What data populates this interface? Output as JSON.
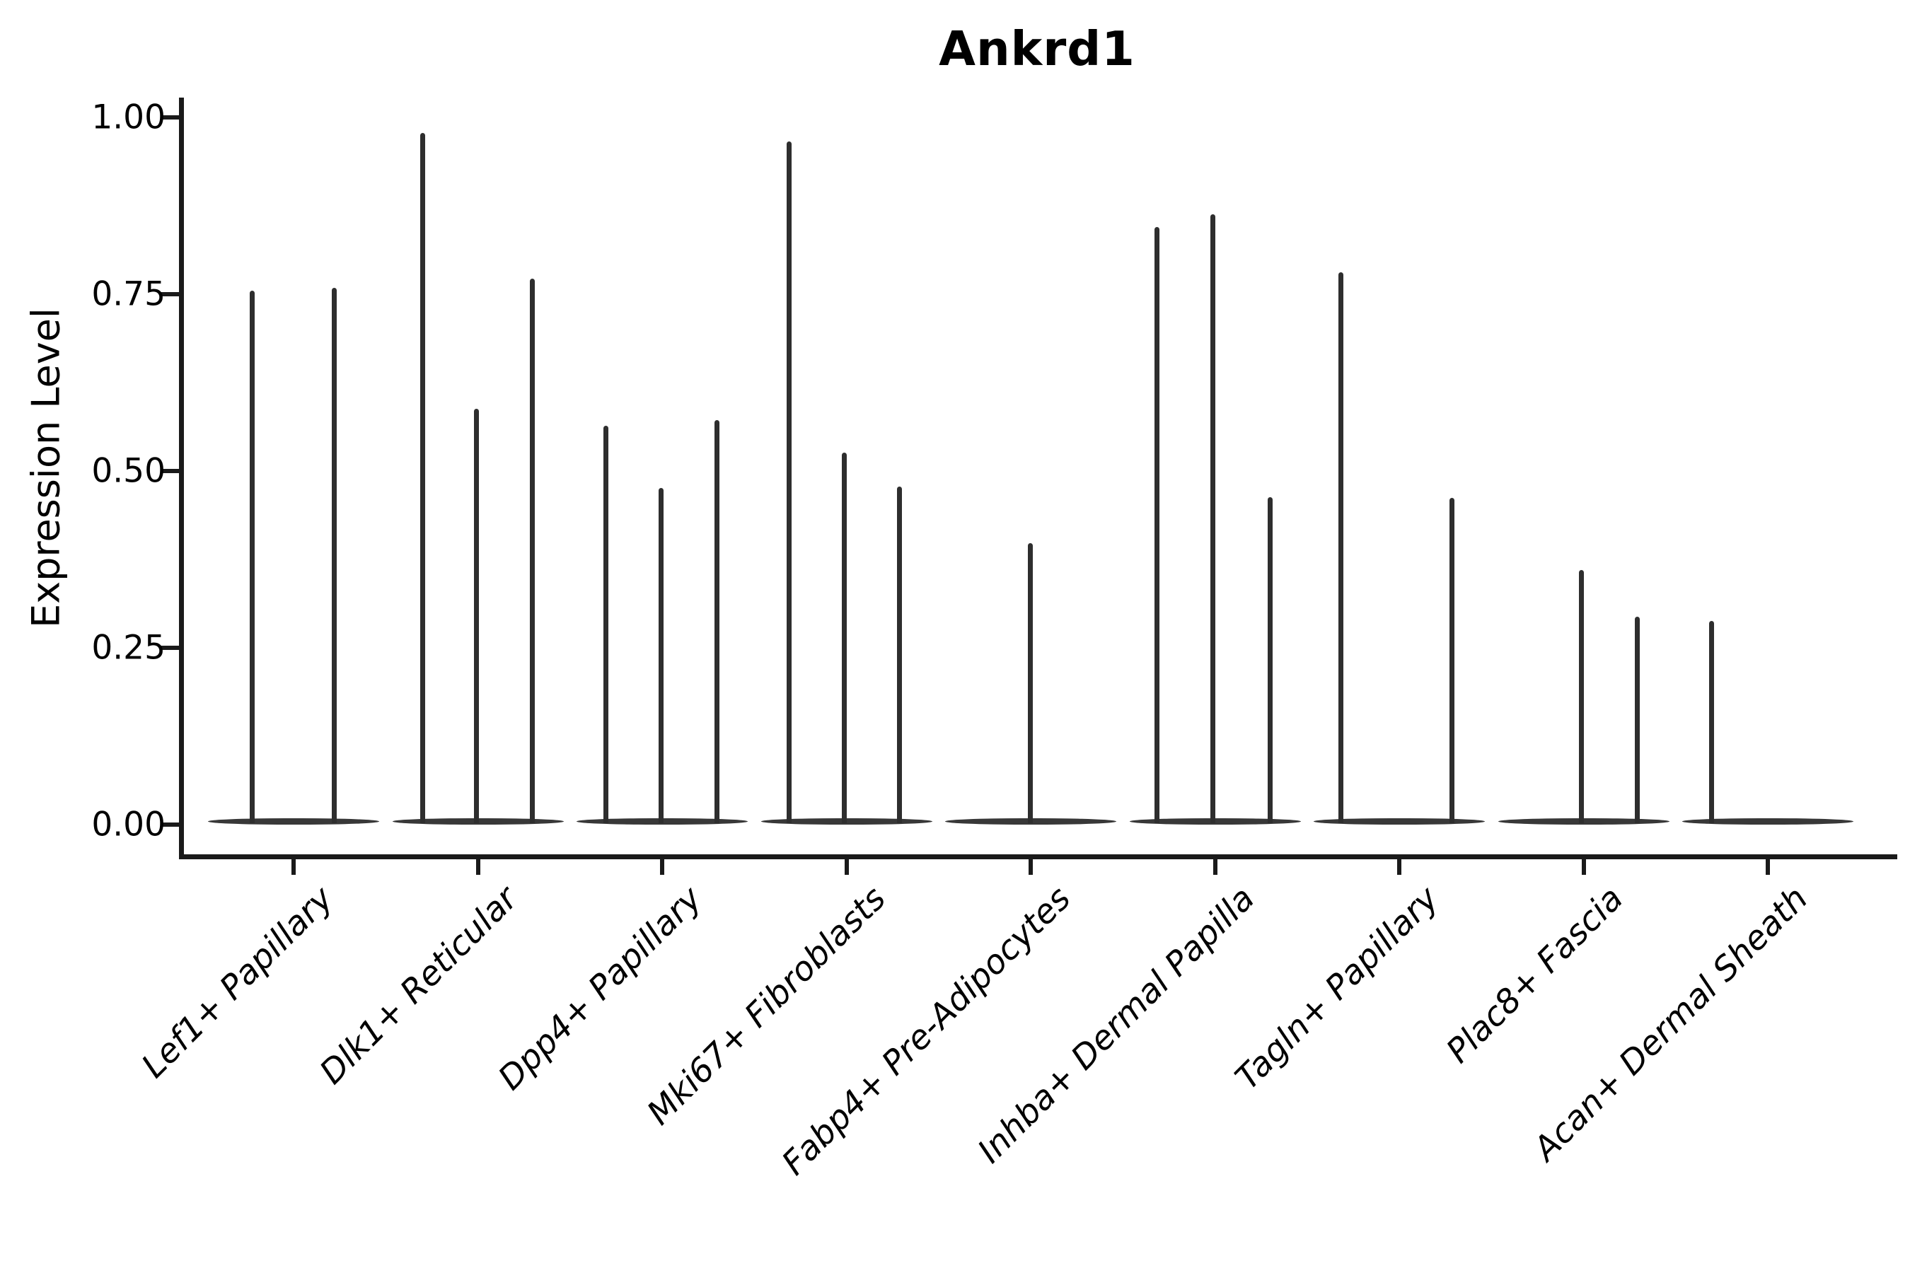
{
  "chart_data": {
    "type": "violin",
    "title": "Ankrd1",
    "ylabel": "Expression Level",
    "xlabel": "",
    "ylim": [
      0,
      1.03
    ],
    "grid": false,
    "legend": "none",
    "background": "#ffffff",
    "colors": {
      "violin": "#2e2e2e",
      "baseline": "#383838",
      "axis": "#1a1a1a",
      "text": "#000000"
    },
    "yticks": [
      {
        "label": "1.00",
        "value": 1.0
      },
      {
        "label": "0.75",
        "value": 0.75
      },
      {
        "label": "0.50",
        "value": 0.5
      },
      {
        "label": "0.25",
        "value": 0.25
      },
      {
        "label": "0.00",
        "value": 0.0
      }
    ],
    "categories": [
      "Lef1+ Papillary",
      "Dlk1+ Reticular",
      "Dpp4+ Papillary",
      "Mki67+ Fibroblasts",
      "Fabp4+ Pre-Adipocytes",
      "Inhba+ Dermal Papilla",
      "Tagln+ Papillary",
      "Plac8+ Fascia",
      "Acan+ Dermal Sheath"
    ],
    "groups": [
      {
        "category": "Lef1+ Papillary",
        "violins": [
          {
            "offset": -59,
            "peak": 0.755
          },
          {
            "offset": 57,
            "peak": 0.759
          }
        ]
      },
      {
        "category": "Dlk1+ Reticular",
        "violins": [
          {
            "offset": -78,
            "peak": 0.978
          },
          {
            "offset": -2,
            "peak": 0.588
          },
          {
            "offset": 77,
            "peak": 0.772
          }
        ]
      },
      {
        "category": "Dpp4+ Papillary",
        "violins": [
          {
            "offset": -80,
            "peak": 0.564
          },
          {
            "offset": -2,
            "peak": 0.476
          },
          {
            "offset": 77,
            "peak": 0.572
          }
        ]
      },
      {
        "category": "Mki67+ Fibroblasts",
        "violins": [
          {
            "offset": -81,
            "peak": 0.966
          },
          {
            "offset": -3,
            "peak": 0.526
          },
          {
            "offset": 75,
            "peak": 0.478
          }
        ]
      },
      {
        "category": "Fabp4+ Pre-Adipocytes",
        "violins": [
          {
            "offset": -1,
            "peak": 0.398
          }
        ]
      },
      {
        "category": "Inhba+ Dermal Papilla",
        "violins": [
          {
            "offset": -82,
            "peak": 0.845
          },
          {
            "offset": -3,
            "peak": 0.863
          },
          {
            "offset": 78,
            "peak": 0.463
          }
        ]
      },
      {
        "category": "Tagln+ Papillary",
        "violins": [
          {
            "offset": -83,
            "peak": 0.781
          },
          {
            "offset": 74,
            "peak": 0.462
          }
        ]
      },
      {
        "category": "Plac8+ Fascia",
        "violins": [
          {
            "offset": -3,
            "peak": 0.36
          },
          {
            "offset": 76,
            "peak": 0.294
          }
        ]
      },
      {
        "category": "Acan+ Dermal Sheath",
        "violins": [
          {
            "offset": -80,
            "peak": 0.288
          }
        ]
      }
    ],
    "baseline_note": "every group shows a flat near-zero violin body (lens) spanning the full group width"
  }
}
